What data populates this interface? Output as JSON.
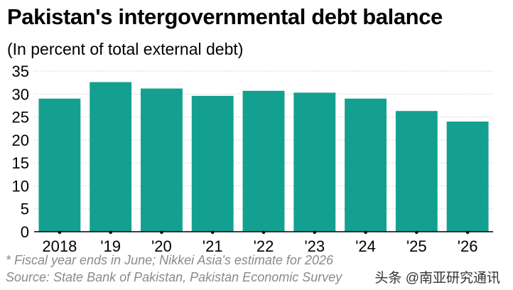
{
  "title": "Pakistan's intergovernmental debt balance",
  "subtitle": "(In percent of total external debt)",
  "footnote": "* Fiscal year ends in June; Nikkei Asia's estimate for 2026",
  "source": "Source: State Bank of Pakistan, Pakistan Economic Survey",
  "watermark": "头条 @南亚研究通讯",
  "colors": {
    "bar": "#14a090",
    "grid": "#c8c8c8",
    "axis": "#000000",
    "note": "#8a8a8a"
  },
  "chart_data": {
    "type": "bar",
    "categories": [
      "2018",
      "'19",
      "'20",
      "'21",
      "'22",
      "'23",
      "'24",
      "'25",
      "'26"
    ],
    "values": [
      29.0,
      32.6,
      31.2,
      29.6,
      30.7,
      30.3,
      29.0,
      26.3,
      24.0
    ],
    "ylim": [
      0,
      35
    ],
    "yticks": [
      0,
      5,
      10,
      15,
      20,
      25,
      30,
      35
    ],
    "grid": "horizontal dotted",
    "legend": "none"
  }
}
